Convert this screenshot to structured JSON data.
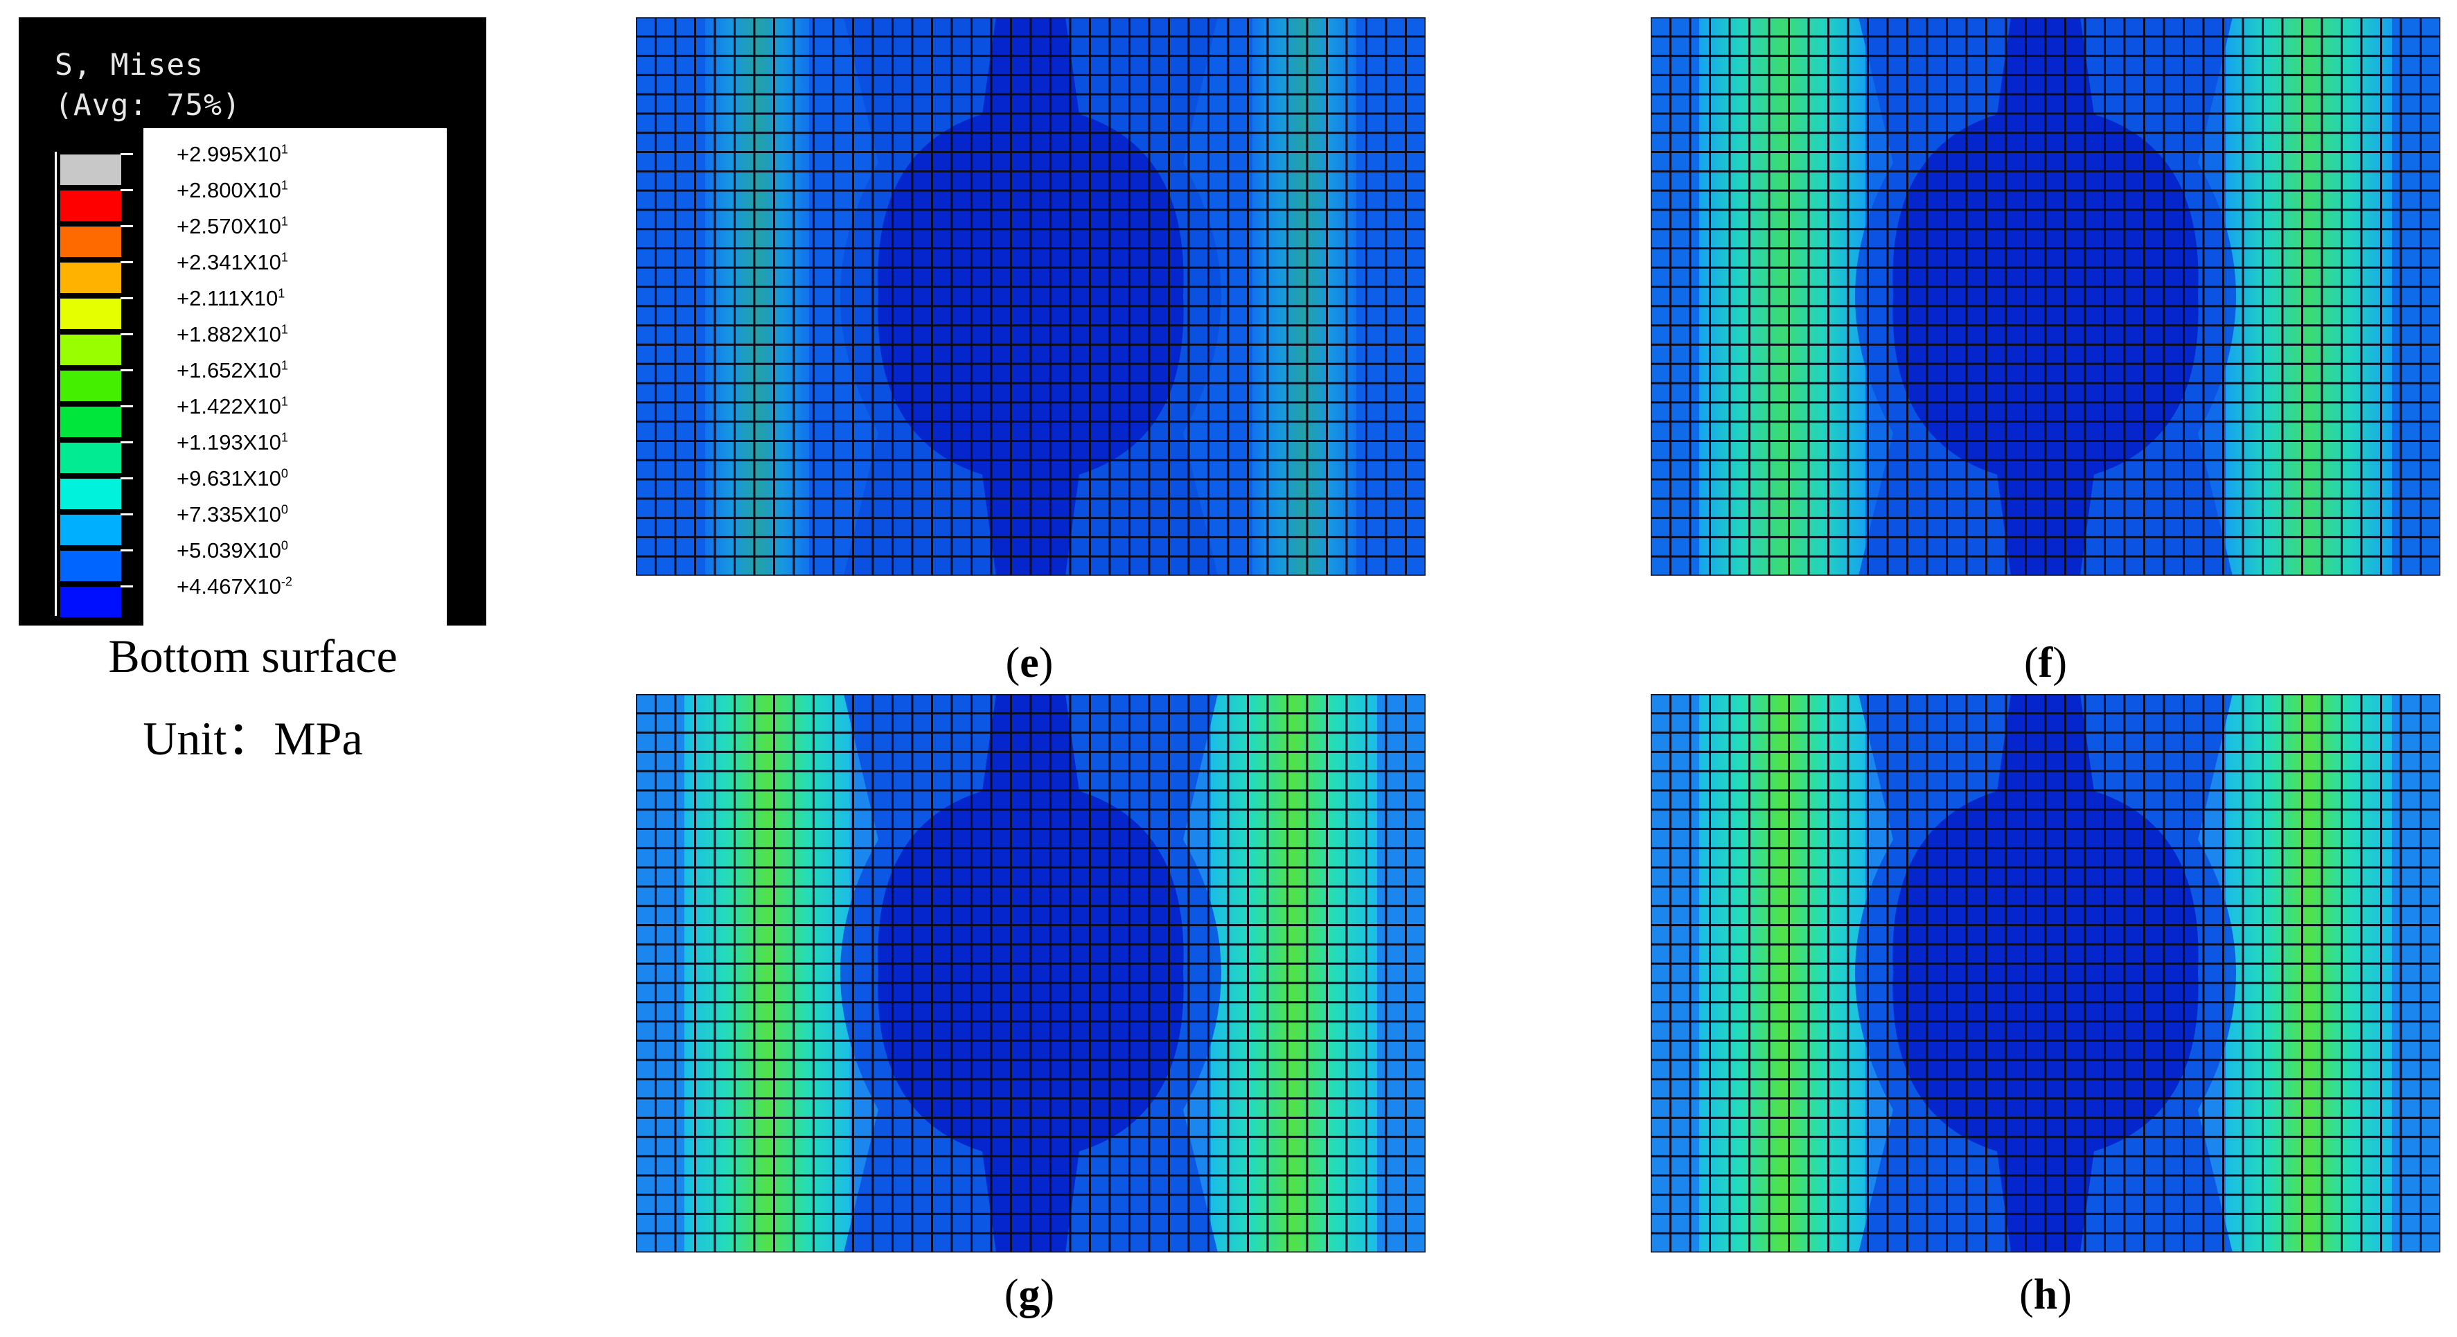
{
  "legend": {
    "title": "S, Mises",
    "subtitle": "(Avg: 75%)",
    "entries": [
      {
        "mantissa": "+2.995X10",
        "exp": "1",
        "color": "#c8c8c8"
      },
      {
        "mantissa": "+2.800X10",
        "exp": "1",
        "color": "#ff0000"
      },
      {
        "mantissa": "+2.570X10",
        "exp": "1",
        "color": "#ff6a00"
      },
      {
        "mantissa": "+2.341X10",
        "exp": "1",
        "color": "#ffb300"
      },
      {
        "mantissa": "+2.111X10",
        "exp": "1",
        "color": "#e6ff00"
      },
      {
        "mantissa": "+1.882X10",
        "exp": "1",
        "color": "#99ff00"
      },
      {
        "mantissa": "+1.652X10",
        "exp": "1",
        "color": "#44f000"
      },
      {
        "mantissa": "+1.422X10",
        "exp": "1",
        "color": "#00e63a"
      },
      {
        "mantissa": "+1.193X10",
        "exp": "1",
        "color": "#00eb92"
      },
      {
        "mantissa": "+9.631X10",
        "exp": "0",
        "color": "#00f2dc"
      },
      {
        "mantissa": "+7.335X10",
        "exp": "0",
        "color": "#00b0ff"
      },
      {
        "mantissa": "+5.039X10",
        "exp": "0",
        "color": "#0064ff"
      },
      {
        "mantissa": "+4.467X10",
        "exp": "-2",
        "color": "#0010ff"
      }
    ]
  },
  "caption": {
    "surface": "Bottom surface",
    "unit": "Unit：MPa"
  },
  "panels": [
    {
      "label": "e",
      "colors": {
        "bg": "#0d5ee8",
        "light": "#1583f2",
        "cyan": "#1fc6dc",
        "green": "#36d96e",
        "dark": "#0426cc"
      }
    },
    {
      "label": "f",
      "colors": {
        "bg": "#0f6bea",
        "light": "#15a3ef",
        "cyan": "#22d3c1",
        "green": "#3ddb72",
        "dark": "#0426cc"
      }
    },
    {
      "label": "g",
      "colors": {
        "bg": "#1a86ee",
        "light": "#1bbce6",
        "cyan": "#24dcbb",
        "green": "#52e247",
        "dark": "#0426cc"
      }
    },
    {
      "label": "h",
      "colors": {
        "bg": "#1a86ee",
        "light": "#1bbce6",
        "cyan": "#24dcbb",
        "green": "#52e247",
        "dark": "#0426cc"
      }
    }
  ]
}
